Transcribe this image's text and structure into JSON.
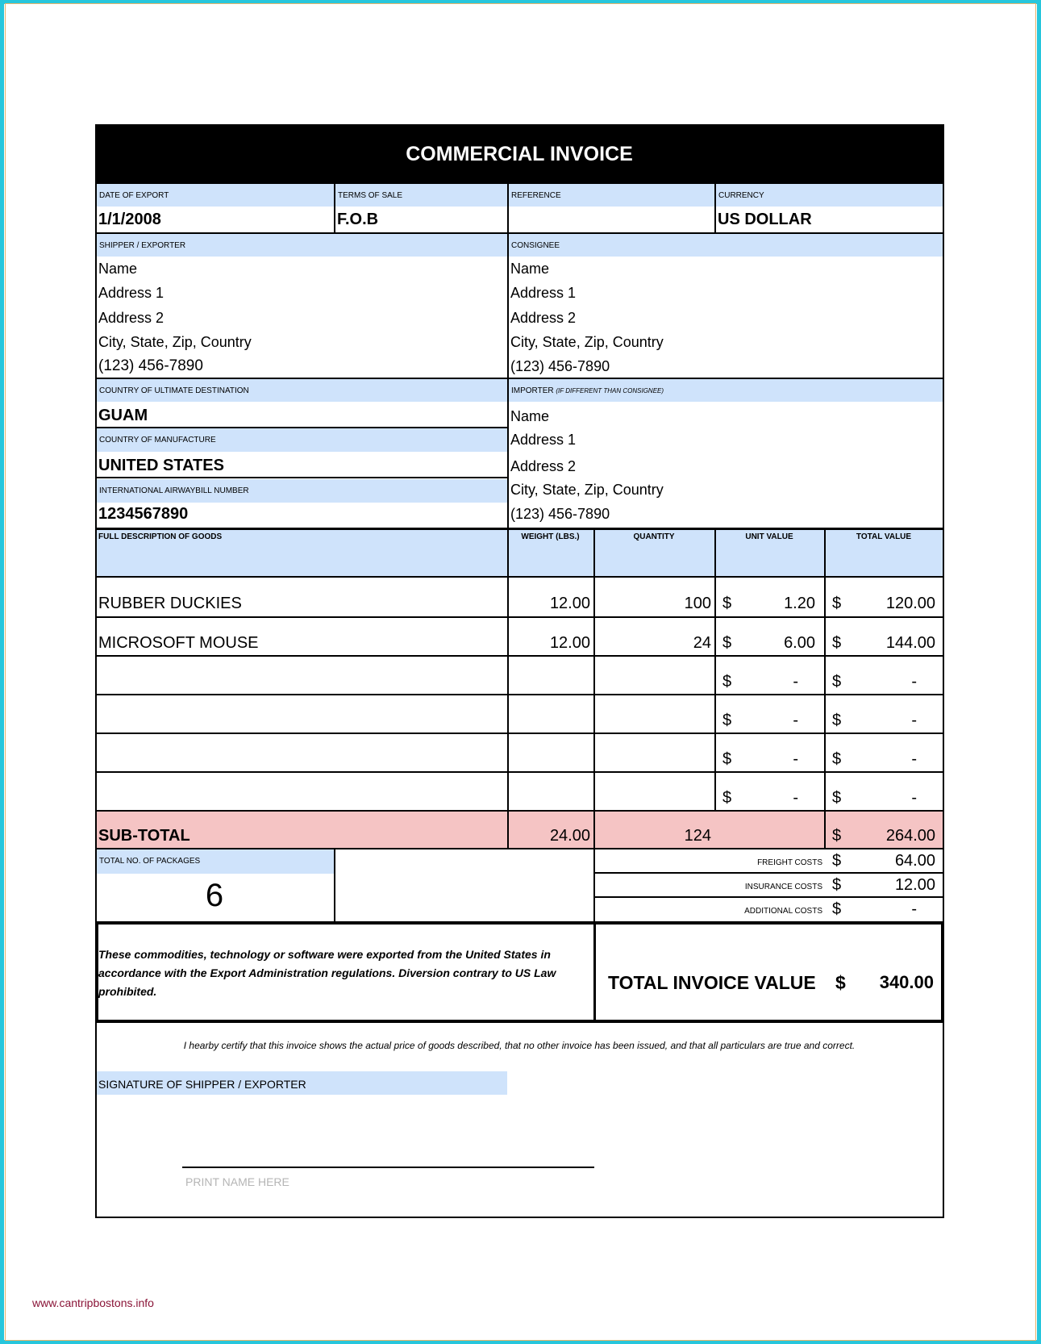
{
  "title": "COMMERCIAL INVOICE",
  "top": {
    "date_label": "DATE OF EXPORT",
    "date": "1/1/2008",
    "terms_label": "TERMS OF SALE",
    "terms": "F.O.B",
    "reference_label": "REFERENCE",
    "reference": "",
    "currency_label": "CURRENCY",
    "currency": "US DOLLAR"
  },
  "shipper": {
    "label": "SHIPPER / EXPORTER",
    "lines": [
      "Name",
      "Address 1",
      "Address 2",
      "City, State, Zip, Country",
      "(123) 456-7890"
    ]
  },
  "consignee": {
    "label": "CONSIGNEE",
    "lines": [
      "Name",
      "Address 1",
      "Address 2",
      "City, State, Zip, Country",
      "(123) 456-7890"
    ]
  },
  "destination": {
    "label": "COUNTRY OF ULTIMATE DESTINATION",
    "value": "GUAM"
  },
  "manufacture": {
    "label": "COUNTRY OF MANUFACTURE",
    "value": "UNITED STATES"
  },
  "airwaybill": {
    "label": "INTERNATIONAL AIRWAYBILL NUMBER",
    "value": "1234567890"
  },
  "importer": {
    "label": "IMPORTER",
    "note": "(IF DIFFERENT THAN CONSIGNEE)",
    "lines": [
      "Name",
      "Address 1",
      "Address 2",
      "City, State, Zip, Country",
      "(123) 456-7890"
    ]
  },
  "goods": {
    "headers": [
      "FULL DESCRIPTION OF GOODS",
      "WEIGHT (LBS.)",
      "QUANTITY",
      "UNIT VALUE",
      "TOTAL VALUE"
    ],
    "rows": [
      {
        "desc": "RUBBER DUCKIES",
        "weight": "12.00",
        "qty": "100",
        "unit": "1.20",
        "total": "120.00"
      },
      {
        "desc": "MICROSOFT MOUSE",
        "weight": "12.00",
        "qty": "24",
        "unit": "6.00",
        "total": "144.00"
      },
      {
        "desc": "",
        "weight": "",
        "qty": "",
        "unit": "-",
        "total": "-"
      },
      {
        "desc": "",
        "weight": "",
        "qty": "",
        "unit": "-",
        "total": "-"
      },
      {
        "desc": "",
        "weight": "",
        "qty": "",
        "unit": "-",
        "total": "-"
      },
      {
        "desc": "",
        "weight": "",
        "qty": "",
        "unit": "-",
        "total": "-"
      }
    ],
    "currency_symbol": "$"
  },
  "subtotal": {
    "label": "SUB-TOTAL",
    "weight": "24.00",
    "qty": "124",
    "total": "264.00"
  },
  "packages": {
    "label": "TOTAL NO. OF PACKAGES",
    "value": "6"
  },
  "costs": [
    {
      "label": "FREIGHT COSTS",
      "value": "64.00"
    },
    {
      "label": "INSURANCE COSTS",
      "value": "12.00"
    },
    {
      "label": "ADDITIONAL COSTS",
      "value": "-"
    }
  ],
  "statement": "These commodities, technology or software were exported from the United States in accordance with the Export Administration regulations.  Diversion contrary to US Law prohibited.",
  "total": {
    "label": "TOTAL INVOICE VALUE",
    "value": "340.00"
  },
  "certify": "I hearby certify that this invoice shows the actual price of goods described, that no other invoice has been issued, and that all particulars are true and correct.",
  "signature_label": "SIGNATURE OF SHIPPER / EXPORTER",
  "print_name": "PRINT NAME HERE",
  "footer_url": "www.cantripbostons.info",
  "colors": {
    "label_bg": "#cfe3fb",
    "subtotal_bg": "#f5c4c4",
    "frame": "#27c6dc"
  }
}
